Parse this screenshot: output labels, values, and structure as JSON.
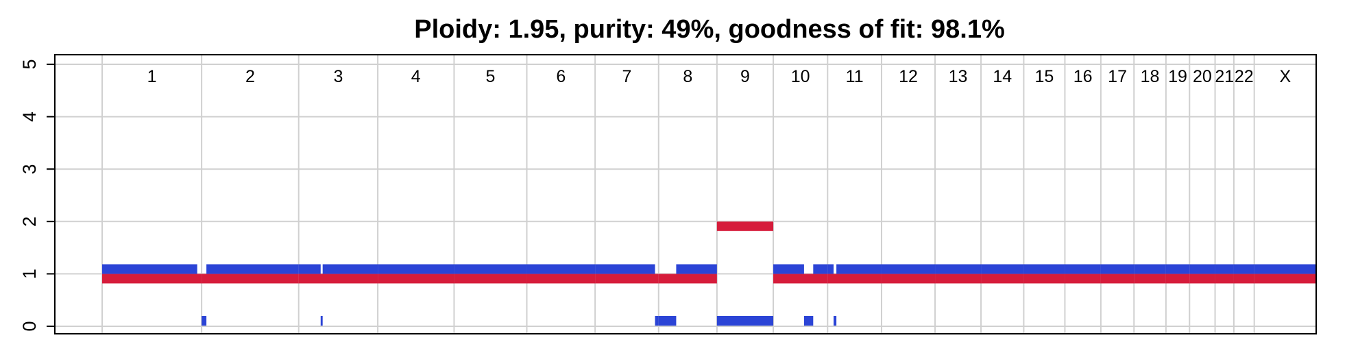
{
  "chart_data": {
    "type": "bar",
    "title": "Ploidy: 1.95, purity: 49%, goodness of fit: 98.1%",
    "xlabel": "",
    "ylabel": "",
    "ylim": [
      0,
      5
    ],
    "yticks": [
      "0",
      "1",
      "2",
      "3",
      "4",
      "5"
    ],
    "grid": true,
    "chromosomes": [
      "1",
      "2",
      "3",
      "4",
      "5",
      "6",
      "7",
      "8",
      "9",
      "10",
      "11",
      "12",
      "13",
      "14",
      "15",
      "16",
      "17",
      "18",
      "19",
      "20",
      "21",
      "22",
      "X"
    ],
    "chromosome_lengths_mb": [
      249,
      243,
      198,
      191,
      182,
      171,
      159,
      146,
      141,
      136,
      135,
      134,
      115,
      107,
      103,
      90,
      83,
      80,
      59,
      64,
      47,
      51,
      155
    ],
    "series": [
      {
        "color": "#d61c3b",
        "segments": [
          {
            "chrom": "1",
            "start": 0,
            "end": 249,
            "value": 1
          },
          {
            "chrom": "2",
            "start": 0,
            "end": 243,
            "value": 1
          },
          {
            "chrom": "3",
            "start": 0,
            "end": 198,
            "value": 1
          },
          {
            "chrom": "4",
            "start": 0,
            "end": 191,
            "value": 1
          },
          {
            "chrom": "5",
            "start": 0,
            "end": 182,
            "value": 1
          },
          {
            "chrom": "6",
            "start": 0,
            "end": 171,
            "value": 1
          },
          {
            "chrom": "7",
            "start": 0,
            "end": 159,
            "value": 1
          },
          {
            "chrom": "8",
            "start": 0,
            "end": 146,
            "value": 1
          },
          {
            "chrom": "9",
            "start": 0,
            "end": 141,
            "value": 2
          },
          {
            "chrom": "10",
            "start": 0,
            "end": 136,
            "value": 1
          },
          {
            "chrom": "11",
            "start": 0,
            "end": 135,
            "value": 1
          },
          {
            "chrom": "12",
            "start": 0,
            "end": 134,
            "value": 1
          },
          {
            "chrom": "13",
            "start": 0,
            "end": 115,
            "value": 1
          },
          {
            "chrom": "14",
            "start": 0,
            "end": 107,
            "value": 1
          },
          {
            "chrom": "15",
            "start": 0,
            "end": 103,
            "value": 1
          },
          {
            "chrom": "16",
            "start": 0,
            "end": 90,
            "value": 1
          },
          {
            "chrom": "17",
            "start": 0,
            "end": 83,
            "value": 1
          },
          {
            "chrom": "18",
            "start": 0,
            "end": 80,
            "value": 1
          },
          {
            "chrom": "19",
            "start": 0,
            "end": 59,
            "value": 1
          },
          {
            "chrom": "20",
            "start": 0,
            "end": 64,
            "value": 1
          },
          {
            "chrom": "21",
            "start": 0,
            "end": 47,
            "value": 1
          },
          {
            "chrom": "22",
            "start": 0,
            "end": 51,
            "value": 1
          },
          {
            "chrom": "X",
            "start": 0,
            "end": 155,
            "value": 1
          }
        ]
      },
      {
        "color": "#2b44d6",
        "segments": [
          {
            "chrom": "1",
            "start": 0,
            "end": 238,
            "value": 1
          },
          {
            "chrom": "2",
            "start": 0,
            "end": 12,
            "value": 0
          },
          {
            "chrom": "2",
            "start": 12,
            "end": 243,
            "value": 1
          },
          {
            "chrom": "3",
            "start": 0,
            "end": 55,
            "value": 1
          },
          {
            "chrom": "3",
            "start": 55,
            "end": 60,
            "value": 0
          },
          {
            "chrom": "3",
            "start": 60,
            "end": 198,
            "value": 1
          },
          {
            "chrom": "4",
            "start": 0,
            "end": 191,
            "value": 1
          },
          {
            "chrom": "5",
            "start": 0,
            "end": 182,
            "value": 1
          },
          {
            "chrom": "6",
            "start": 0,
            "end": 171,
            "value": 1
          },
          {
            "chrom": "7",
            "start": 0,
            "end": 150,
            "value": 1
          },
          {
            "chrom": "7",
            "start": 150,
            "end": 159,
            "value": 0
          },
          {
            "chrom": "8",
            "start": 0,
            "end": 44,
            "value": 0
          },
          {
            "chrom": "8",
            "start": 44,
            "end": 146,
            "value": 1
          },
          {
            "chrom": "9",
            "start": 0,
            "end": 141,
            "value": 0
          },
          {
            "chrom": "10",
            "start": 0,
            "end": 77,
            "value": 1
          },
          {
            "chrom": "10",
            "start": 77,
            "end": 100,
            "value": 0
          },
          {
            "chrom": "10",
            "start": 100,
            "end": 136,
            "value": 1
          },
          {
            "chrom": "11",
            "start": 0,
            "end": 15,
            "value": 1
          },
          {
            "chrom": "11",
            "start": 15,
            "end": 22,
            "value": 0
          },
          {
            "chrom": "11",
            "start": 22,
            "end": 135,
            "value": 1
          },
          {
            "chrom": "12",
            "start": 0,
            "end": 134,
            "value": 1
          },
          {
            "chrom": "13",
            "start": 0,
            "end": 115,
            "value": 1
          },
          {
            "chrom": "14",
            "start": 0,
            "end": 107,
            "value": 1
          },
          {
            "chrom": "15",
            "start": 0,
            "end": 103,
            "value": 1
          },
          {
            "chrom": "16",
            "start": 0,
            "end": 90,
            "value": 1
          },
          {
            "chrom": "17",
            "start": 0,
            "end": 83,
            "value": 1
          },
          {
            "chrom": "18",
            "start": 0,
            "end": 80,
            "value": 1
          },
          {
            "chrom": "19",
            "start": 0,
            "end": 59,
            "value": 1
          },
          {
            "chrom": "20",
            "start": 0,
            "end": 64,
            "value": 1
          },
          {
            "chrom": "21",
            "start": 0,
            "end": 47,
            "value": 1
          },
          {
            "chrom": "22",
            "start": 0,
            "end": 51,
            "value": 1
          },
          {
            "chrom": "X",
            "start": 0,
            "end": 155,
            "value": 1
          }
        ]
      }
    ]
  }
}
